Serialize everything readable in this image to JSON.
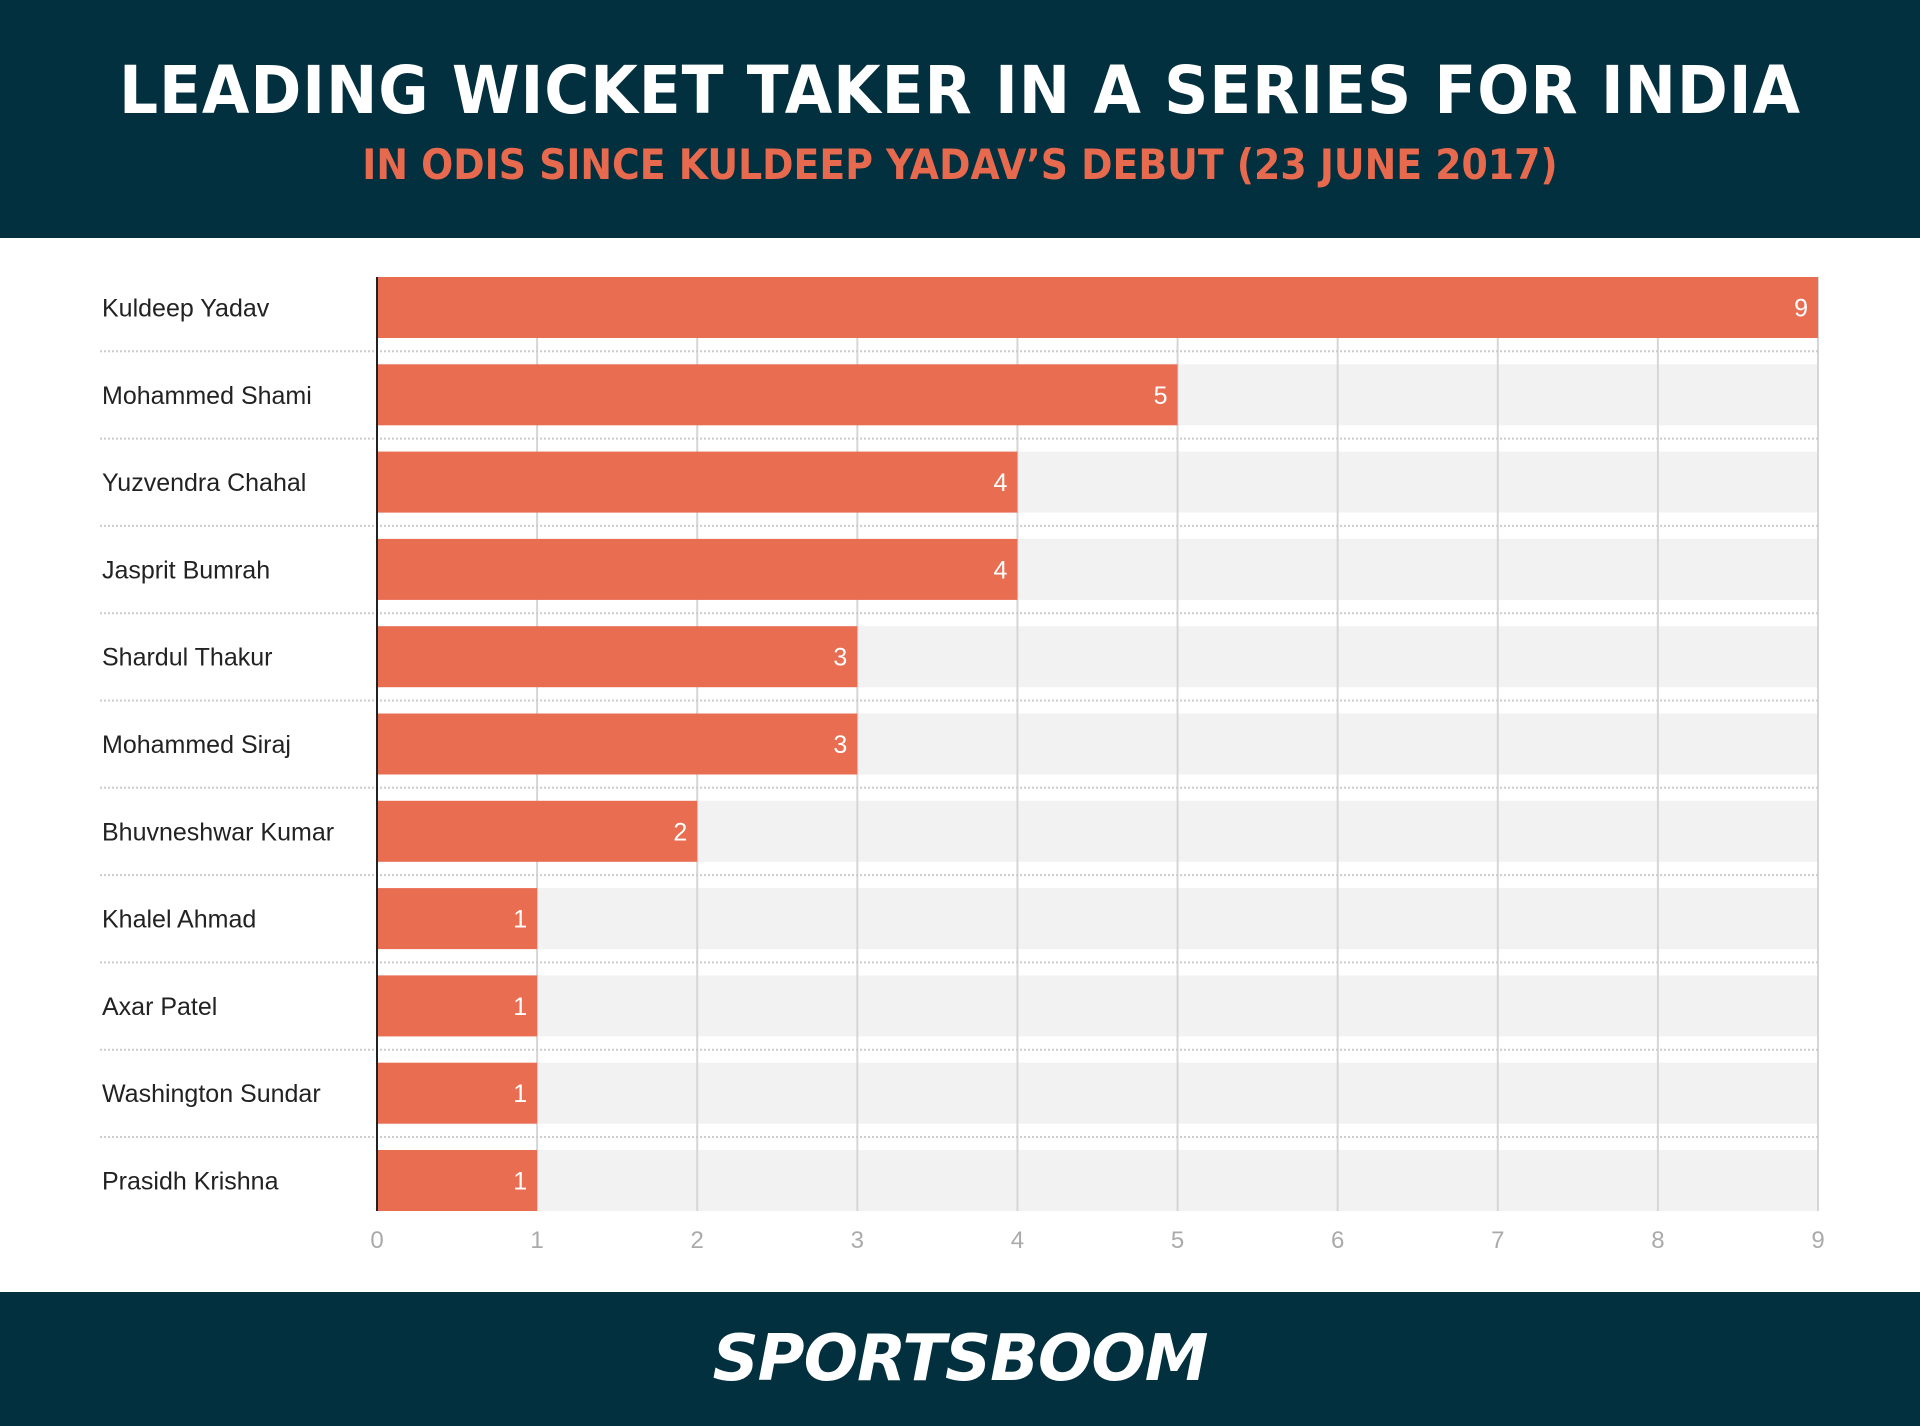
{
  "header": {
    "title": "LEADING WICKET TAKER IN A SERIES FOR INDIA",
    "subtitle": "IN ODIS SINCE KULDEEP YADAV’S DEBUT (23 JUNE 2017)"
  },
  "footer": {
    "logo": "SPORTSBOOM"
  },
  "colors": {
    "header_bg": "#02303f",
    "bar": "#e86d51",
    "track": "#f2f2f2",
    "subtitle": "#e86a4e"
  },
  "chart_data": {
    "type": "bar",
    "orientation": "horizontal",
    "title": "LEADING WICKET TAKER IN A SERIES FOR INDIA",
    "subtitle": "IN ODIS SINCE KULDEEP YADAV’S DEBUT (23 JUNE 2017)",
    "categories": [
      "Kuldeep Yadav",
      "Mohammed Shami",
      "Yuzvendra Chahal",
      "Jasprit Bumrah",
      "Shardul Thakur",
      "Mohammed Siraj",
      "Bhuvneshwar Kumar",
      "Khalel Ahmad",
      "Axar Patel",
      "Washington Sundar",
      "Prasidh Krishna"
    ],
    "values": [
      9,
      5,
      4,
      4,
      3,
      3,
      2,
      1,
      1,
      1,
      1
    ],
    "xlim": [
      0,
      9
    ],
    "xticks": [
      "0",
      "1",
      "2",
      "3",
      "4",
      "5",
      "6",
      "7",
      "8",
      "9"
    ],
    "grid": true,
    "data_labels": true
  }
}
